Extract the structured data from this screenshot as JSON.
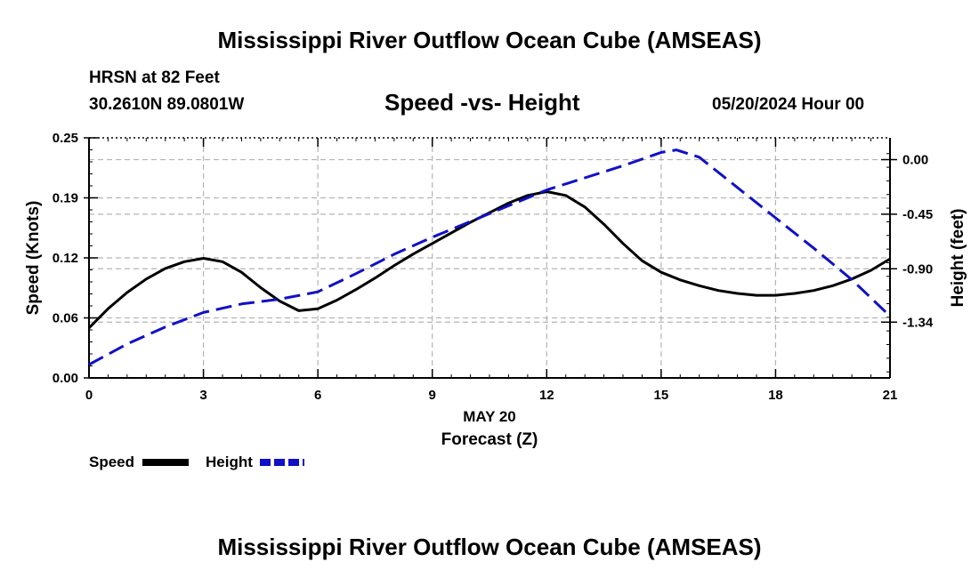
{
  "page": {
    "title_top": "Mississippi River Outflow Ocean Cube (AMSEAS)",
    "title_bottom": "Mississippi River Outflow Ocean Cube (AMSEAS)",
    "station": "HRSN at 82 Feet",
    "location": "30.2610N  89.0801W",
    "datetime": "05/20/2024 Hour 00"
  },
  "chart_data": {
    "type": "line",
    "title": "Speed -vs- Height",
    "xlabel": "Forecast (Z)",
    "xsublabel": "MAY 20",
    "ylabel": "Speed (Knots)",
    "y2label": "Height (feet)",
    "xlim": [
      0,
      21
    ],
    "ylim": [
      0,
      0.25
    ],
    "y2lim": [
      -1.8,
      0.18
    ],
    "x_ticks": [
      0,
      3,
      6,
      9,
      12,
      15,
      18,
      21
    ],
    "x_tick_labels": [
      "0",
      "3",
      "6",
      "9",
      "12",
      "15",
      "18",
      "21"
    ],
    "y_ticks": [
      0,
      0.0625,
      0.125,
      0.1875,
      0.25
    ],
    "y_tick_labels": [
      "0.00",
      "0.06",
      "0.12",
      "0.19",
      "0.25"
    ],
    "y2_ticks": [
      0.0,
      -0.45,
      -0.9,
      -1.34
    ],
    "y2_tick_labels": [
      "0.00",
      "-0.45",
      "-0.90",
      "-1.34"
    ],
    "grid": true,
    "legend": [
      {
        "label": "Speed",
        "color": "#000000",
        "dash": "solid"
      },
      {
        "label": "Height",
        "color": "#1010c8",
        "dash": "dashed"
      }
    ],
    "series": [
      {
        "name": "Speed",
        "axis": "left",
        "color": "#000000",
        "dash": "solid",
        "x": [
          0,
          0.5,
          1,
          1.5,
          2,
          2.5,
          3,
          3.5,
          4,
          4.5,
          5,
          5.5,
          6,
          6.5,
          7,
          7.5,
          8,
          8.5,
          9,
          9.5,
          10,
          10.5,
          11,
          11.5,
          12,
          12.5,
          13,
          13.5,
          14,
          14.5,
          15,
          15.5,
          16,
          16.5,
          17,
          17.5,
          18,
          18.5,
          19,
          19.5,
          20,
          20.5,
          21
        ],
        "values": [
          0.052,
          0.072,
          0.089,
          0.103,
          0.114,
          0.121,
          0.1245,
          0.121,
          0.11,
          0.094,
          0.08,
          0.07,
          0.072,
          0.081,
          0.092,
          0.104,
          0.117,
          0.129,
          0.14,
          0.151,
          0.162,
          0.172,
          0.182,
          0.19,
          0.194,
          0.19,
          0.178,
          0.16,
          0.14,
          0.122,
          0.11,
          0.102,
          0.096,
          0.091,
          0.088,
          0.086,
          0.086,
          0.088,
          0.091,
          0.096,
          0.103,
          0.112,
          0.124
        ]
      },
      {
        "name": "Height",
        "axis": "right",
        "color": "#1010c8",
        "dash": "dashed",
        "x": [
          0,
          1,
          2,
          3,
          4,
          5,
          6,
          7,
          8,
          9,
          10,
          11,
          12,
          13,
          14,
          15,
          15.4,
          16,
          17,
          18,
          19,
          20,
          21
        ],
        "values": [
          -1.69,
          -1.52,
          -1.38,
          -1.26,
          -1.19,
          -1.15,
          -1.09,
          -0.94,
          -0.78,
          -0.64,
          -0.51,
          -0.38,
          -0.25,
          -0.15,
          -0.05,
          0.06,
          0.08,
          0.02,
          -0.23,
          -0.48,
          -0.73,
          -0.99,
          -1.29
        ]
      }
    ]
  }
}
